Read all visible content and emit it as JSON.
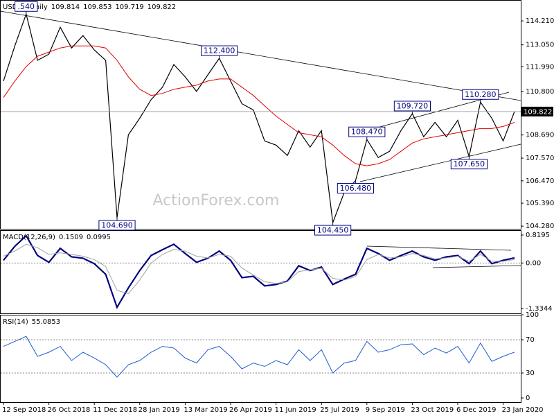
{
  "chart_data": [
    {
      "type": "line",
      "title": "USDJPY,Daily",
      "ohlc": [
        109.814,
        109.853,
        109.719,
        109.822
      ],
      "watermark": "ActionForex.com",
      "series": [
        {
          "color": "#000000",
          "values": [
            111.3,
            113.0,
            114.54,
            112.3,
            112.6,
            113.9,
            112.9,
            113.5,
            112.8,
            112.3,
            104.69,
            108.7,
            109.5,
            110.4,
            111.0,
            112.1,
            111.5,
            110.8,
            111.6,
            112.4,
            111.3,
            110.2,
            109.9,
            108.4,
            108.2,
            107.7,
            108.9,
            108.1,
            108.9,
            104.45,
            105.9,
            106.48,
            108.47,
            107.6,
            107.9,
            108.9,
            109.72,
            108.6,
            109.3,
            108.6,
            109.4,
            107.65,
            110.28,
            109.5,
            108.4,
            109.822
          ]
        },
        {
          "color": "#e00000",
          "values": [
            110.5,
            111.3,
            112.0,
            112.5,
            112.7,
            112.9,
            113.0,
            113.0,
            113.0,
            112.9,
            112.3,
            111.5,
            110.9,
            110.6,
            110.7,
            110.9,
            111.0,
            111.1,
            111.3,
            111.4,
            111.4,
            111.0,
            110.6,
            110.1,
            109.6,
            109.2,
            108.8,
            108.7,
            108.6,
            108.2,
            107.7,
            107.3,
            107.2,
            107.3,
            107.5,
            107.9,
            108.3,
            108.5,
            108.6,
            108.7,
            108.8,
            108.9,
            109.0,
            109.0,
            109.1,
            109.3
          ]
        }
      ],
      "annotations": [
        {
          "value": 114.54,
          "label": ".540"
        },
        {
          "value": 104.69,
          "label": "104.690"
        },
        {
          "value": 112.4,
          "label": "112.400"
        },
        {
          "value": 104.45,
          "label": "104.450"
        },
        {
          "value": 106.48,
          "label": "106.480"
        },
        {
          "value": 108.47,
          "label": "108.470"
        },
        {
          "value": 109.72,
          "label": "109.720"
        },
        {
          "value": 107.65,
          "label": "107.650"
        },
        {
          "value": 110.28,
          "label": "110.280"
        }
      ],
      "ylim": [
        104.15,
        115.22
      ],
      "yticks": [
        {
          "value": 114.21,
          "label": "114.210"
        },
        {
          "value": 113.05,
          "label": "113.050"
        },
        {
          "value": 111.99,
          "label": "111.990"
        },
        {
          "value": 110.8,
          "label": "110.800"
        },
        {
          "value": 108.69,
          "label": "108.690"
        },
        {
          "value": 107.57,
          "label": "107.570"
        },
        {
          "value": 106.47,
          "label": "106.470"
        },
        {
          "value": 105.39,
          "label": "105.390"
        },
        {
          "value": 104.28,
          "label": "104.280"
        }
      ]
    },
    {
      "type": "line",
      "title": "MACD(12,26,9)",
      "series": [
        {
          "color": "#000080",
          "values": [
            0.08,
            0.49,
            0.8,
            0.22,
            0.02,
            0.43,
            0.18,
            0.14,
            -0.02,
            -0.33,
            -1.3,
            -0.73,
            -0.22,
            0.22,
            0.39,
            0.55,
            0.28,
            0.02,
            0.14,
            0.35,
            0.08,
            -0.43,
            -0.39,
            -0.67,
            -0.63,
            -0.53,
            -0.08,
            -0.22,
            -0.12,
            -0.63,
            -0.47,
            -0.33,
            0.43,
            0.28,
            0.08,
            0.22,
            0.35,
            0.18,
            0.08,
            0.18,
            0.22,
            -0.02,
            0.35,
            -0.02,
            0.08,
            0.1509
          ]
        },
        {
          "color": "#a0a0a0",
          "values": [
            0.2,
            0.35,
            0.55,
            0.45,
            0.25,
            0.3,
            0.25,
            0.2,
            0.1,
            -0.1,
            -0.8,
            -0.9,
            -0.5,
            0.0,
            0.25,
            0.4,
            0.35,
            0.2,
            0.15,
            0.25,
            0.2,
            -0.15,
            -0.35,
            -0.55,
            -0.6,
            -0.55,
            -0.25,
            -0.2,
            -0.15,
            -0.45,
            -0.5,
            -0.4,
            0.1,
            0.25,
            0.15,
            0.18,
            0.28,
            0.22,
            0.12,
            0.15,
            0.2,
            0.05,
            0.25,
            0.05,
            0.05,
            0.0995
          ]
        }
      ],
      "ylim": [
        -1.477,
        0.962
      ],
      "yticks": [
        0.8195,
        {
          "value": 0,
          "label": "0.00"
        },
        -1.3344
      ],
      "reference_lines": [
        0
      ]
    },
    {
      "type": "line",
      "title": "RSI(14)",
      "categories": [
        "12 Sep 2018",
        null,
        null,
        null,
        "26 Oct 2018",
        null,
        null,
        null,
        "11 Dec 2018",
        null,
        null,
        null,
        "28 Jan 2019",
        null,
        null,
        null,
        "13 Mar 2019",
        null,
        null,
        null,
        "26 Apr 2019",
        null,
        null,
        null,
        "11 Jun 2019",
        null,
        null,
        null,
        "25 Jul 2019",
        null,
        null,
        null,
        "9 Sep 2019",
        null,
        null,
        null,
        "23 Oct 2019",
        null,
        null,
        null,
        "6 Dec 2019",
        null,
        null,
        null,
        "23 Jan 2020",
        null
      ],
      "series": [
        {
          "color": "#1e5ad2",
          "values": [
            62,
            68,
            74,
            50,
            55,
            62,
            45,
            55,
            48,
            40,
            25,
            40,
            45,
            55,
            62,
            60,
            48,
            42,
            58,
            62,
            50,
            35,
            42,
            38,
            45,
            40,
            58,
            45,
            58,
            30,
            42,
            45,
            68,
            55,
            58,
            64,
            65,
            52,
            60,
            54,
            62,
            42,
            66,
            44,
            50,
            55.0853
          ]
        }
      ],
      "ylim": [
        -5,
        100
      ],
      "yticks": [
        100,
        70,
        30,
        0
      ],
      "reference_lines": [
        70,
        30
      ]
    }
  ]
}
